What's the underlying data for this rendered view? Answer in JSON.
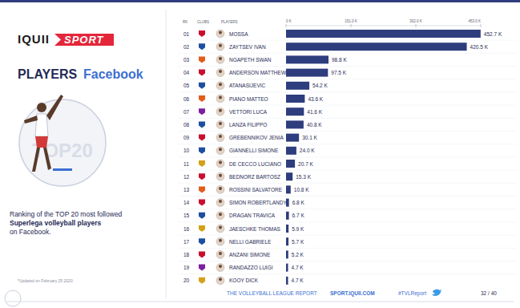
{
  "slide": {
    "logo_left": "IQUII",
    "logo_right": "SPORT",
    "heading_bold": "PLAYERS",
    "heading_light": "Facebook",
    "badge": "TOP20",
    "description": [
      "Ranking of the TOP 20 most followed",
      "Superlega volleyball players",
      "on Facebook."
    ],
    "updated": "*Updated on February 25 2020",
    "headers": [
      "RK",
      "CLUBS",
      "PLAYERS"
    ],
    "footer": [
      "THE VOLLEYBALL LEAGUE REPORT",
      "SPORT.IQUII.COM",
      "#TVLReport"
    ],
    "page": "32 / 40"
  },
  "chart_data": {
    "type": "bar",
    "orientation": "horizontal",
    "categories": [
      "MOSSA",
      "ZAYTSEV IVAN",
      "NGAPETH SWAN",
      "ANDERSON MATTHEW",
      "ATANASIJEVIC",
      "PIANO MATTEO",
      "VETTORI LUCA",
      "LANZA FILIPPO",
      "GREBENNIKOV JENIA",
      "GIANNELLI SIMONE",
      "DE CECCO LUCIANO",
      "BEDNORZ BARTOSZ",
      "ROSSINI SALVATORE",
      "SIMON ROBERTLANDY",
      "DRAGAN TRAVICA",
      "JAESCHKE THOMAS",
      "NELLI GABRIELE",
      "ANZANI SIMONE",
      "RANDAZZO LUIGI",
      "KOOY DICK"
    ],
    "ranks": [
      "01",
      "02",
      "03",
      "04",
      "05",
      "06",
      "07",
      "08",
      "09",
      "10",
      "11",
      "12",
      "13",
      "14",
      "15",
      "16",
      "17",
      "18",
      "19",
      "20"
    ],
    "values": [
      452.7,
      420.5,
      98.8,
      97.5,
      54.2,
      43.6,
      41.6,
      40.8,
      30.1,
      24.0,
      20.7,
      15.3,
      10.8,
      6.8,
      6.7,
      5.9,
      5.7,
      5.2,
      4.7,
      4.7
    ],
    "value_labels": [
      "452.7 K",
      "420.5 K",
      "98.8 K",
      "97.5 K",
      "54.2 K",
      "43.6 K",
      "41.6 K",
      "40.8 K",
      "30.1 K",
      "24.0 K",
      "20.7 K",
      "15.3 K",
      "10.8 K",
      "6.8 K",
      "6.7 K",
      "5.9 K",
      "5.7 K",
      "5.2 K",
      "4.7 K",
      "4.7 K"
    ],
    "color": "#2e3d7d",
    "xlim": [
      0,
      453
    ],
    "xticks": [
      {
        "value": 0,
        "label": "0 K"
      },
      {
        "value": 151,
        "label": "151.0 K"
      },
      {
        "value": 302,
        "label": "302.0 K"
      },
      {
        "value": 453,
        "label": "453.0 K"
      }
    ],
    "grid": false,
    "data_labels": true
  }
}
